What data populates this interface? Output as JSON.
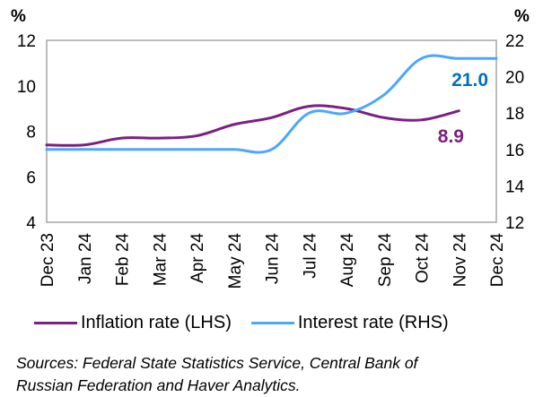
{
  "chart_data": {
    "type": "line",
    "title": "",
    "x": [
      "Dec 23",
      "Jan 24",
      "Feb 24",
      "Mar 24",
      "Apr 24",
      "May 24",
      "Jun 24",
      "Jul 24",
      "Aug 24",
      "Sep 24",
      "Oct 24",
      "Nov 24",
      "Dec 24"
    ],
    "series": [
      {
        "name": "Inflation rate (LHS)",
        "axis": "left",
        "color": "#7B2082",
        "values": [
          7.4,
          7.4,
          7.7,
          7.7,
          7.8,
          8.3,
          8.6,
          9.1,
          9.0,
          8.6,
          8.5,
          8.9,
          null
        ],
        "end_label": "8.9"
      },
      {
        "name": "Interest rate (RHS)",
        "axis": "right",
        "color": "#4DA6FF",
        "values": [
          16,
          16,
          16,
          16,
          16,
          16,
          16,
          18,
          18,
          19,
          21,
          21,
          21
        ],
        "end_label": "21.0",
        "end_label_color": "#0070C0"
      }
    ],
    "y_left": {
      "label": "%",
      "ylim": [
        4,
        12
      ],
      "ticks": [
        "4",
        "6",
        "8",
        "10",
        "12"
      ]
    },
    "y_right": {
      "label": "%",
      "ylim": [
        12,
        22
      ],
      "ticks": [
        "12",
        "14",
        "16",
        "18",
        "20",
        "22"
      ]
    },
    "grid": false,
    "legend": "bottom"
  },
  "legend": {
    "items": [
      {
        "label": "Inflation rate (LHS)",
        "color": "#7B2082"
      },
      {
        "label": "Interest rate (RHS)",
        "color": "#4DA6FF"
      }
    ]
  },
  "sources": {
    "line1": "Sources: Federal State Statistics Service, Central Bank of",
    "line2": "Russian Federation and Haver Analytics."
  }
}
